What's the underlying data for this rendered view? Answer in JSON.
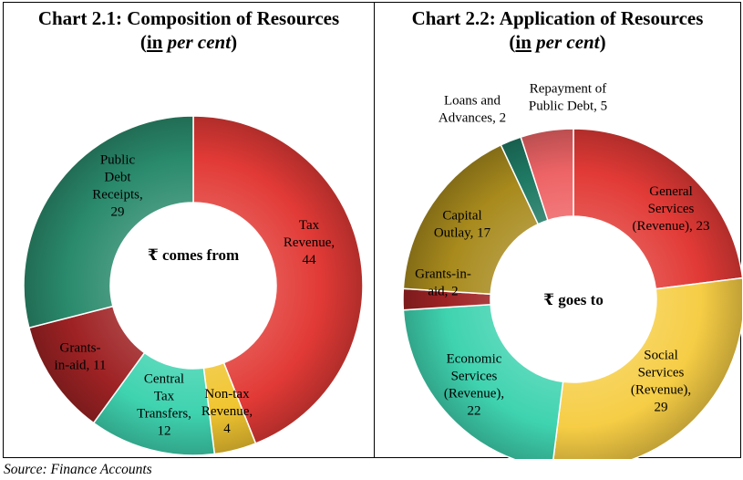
{
  "chart_data": [
    {
      "type": "pie",
      "title": "Chart 2.1: Composition of Resources",
      "subtitle_prefix": "(",
      "subtitle_underlined": "in",
      "subtitle_italic": "per cent",
      "subtitle_suffix": ")",
      "center_label": "₹ comes from",
      "slices": [
        {
          "label": "Tax Revenue",
          "value": 44,
          "text": [
            "Tax",
            "Revenue,",
            "44"
          ],
          "color": "#e23a36"
        },
        {
          "label": "Non-tax Revenue",
          "value": 4,
          "text": [
            "Non-tax",
            "Revenue,",
            "4"
          ],
          "color": "#f1c531"
        },
        {
          "label": "Central Tax Transfers",
          "value": 12,
          "text": [
            "Central",
            "Tax",
            "Transfers,",
            "12"
          ],
          "color": "#3fd3b0"
        },
        {
          "label": "Grants-in-aid",
          "value": 11,
          "text": [
            "Grants-",
            "in-aid, 11"
          ],
          "color": "#9e2224"
        },
        {
          "label": "Public Debt Receipts",
          "value": 29,
          "text": [
            "Public",
            "Debt",
            "Receipts,",
            "29"
          ],
          "color": "#2a8a6c"
        }
      ]
    },
    {
      "type": "pie",
      "title": "Chart 2.2: Application of Resources",
      "subtitle_prefix": "(",
      "subtitle_underlined": "in",
      "subtitle_italic": "per cent",
      "subtitle_suffix": ")",
      "center_label": "₹ goes to",
      "slices": [
        {
          "label": "General Services (Revenue)",
          "value": 23,
          "text": [
            "General",
            "Services",
            "(Revenue), 23"
          ],
          "color": "#e23a36"
        },
        {
          "label": "Social Services (Revenue)",
          "value": 29,
          "text": [
            "Social",
            "Services",
            "(Revenue),",
            "29"
          ],
          "color": "#f6cd45"
        },
        {
          "label": "Economic Services (Revenue)",
          "value": 22,
          "text": [
            "Economic",
            "Services",
            "(Revenue),",
            "22"
          ],
          "color": "#3fd3b0"
        },
        {
          "label": "Grants-in-aid",
          "value": 2,
          "text": [
            "Grants-in-",
            "aid, 2"
          ],
          "color": "#9e2224"
        },
        {
          "label": "Capital Outlay",
          "value": 17,
          "text": [
            "Capital",
            "Outlay, 17"
          ],
          "color": "#a88a1d"
        },
        {
          "label": "Loans and Advances",
          "value": 2,
          "text": [
            "Loans and",
            "Advances, 2"
          ],
          "color": "#1f7a64"
        },
        {
          "label": "Repayment of Public Debt",
          "value": 5,
          "text": [
            "Repayment of",
            "Public Debt, 5"
          ],
          "color": "#ee6466"
        }
      ]
    }
  ],
  "source": "Source: Finance Accounts"
}
